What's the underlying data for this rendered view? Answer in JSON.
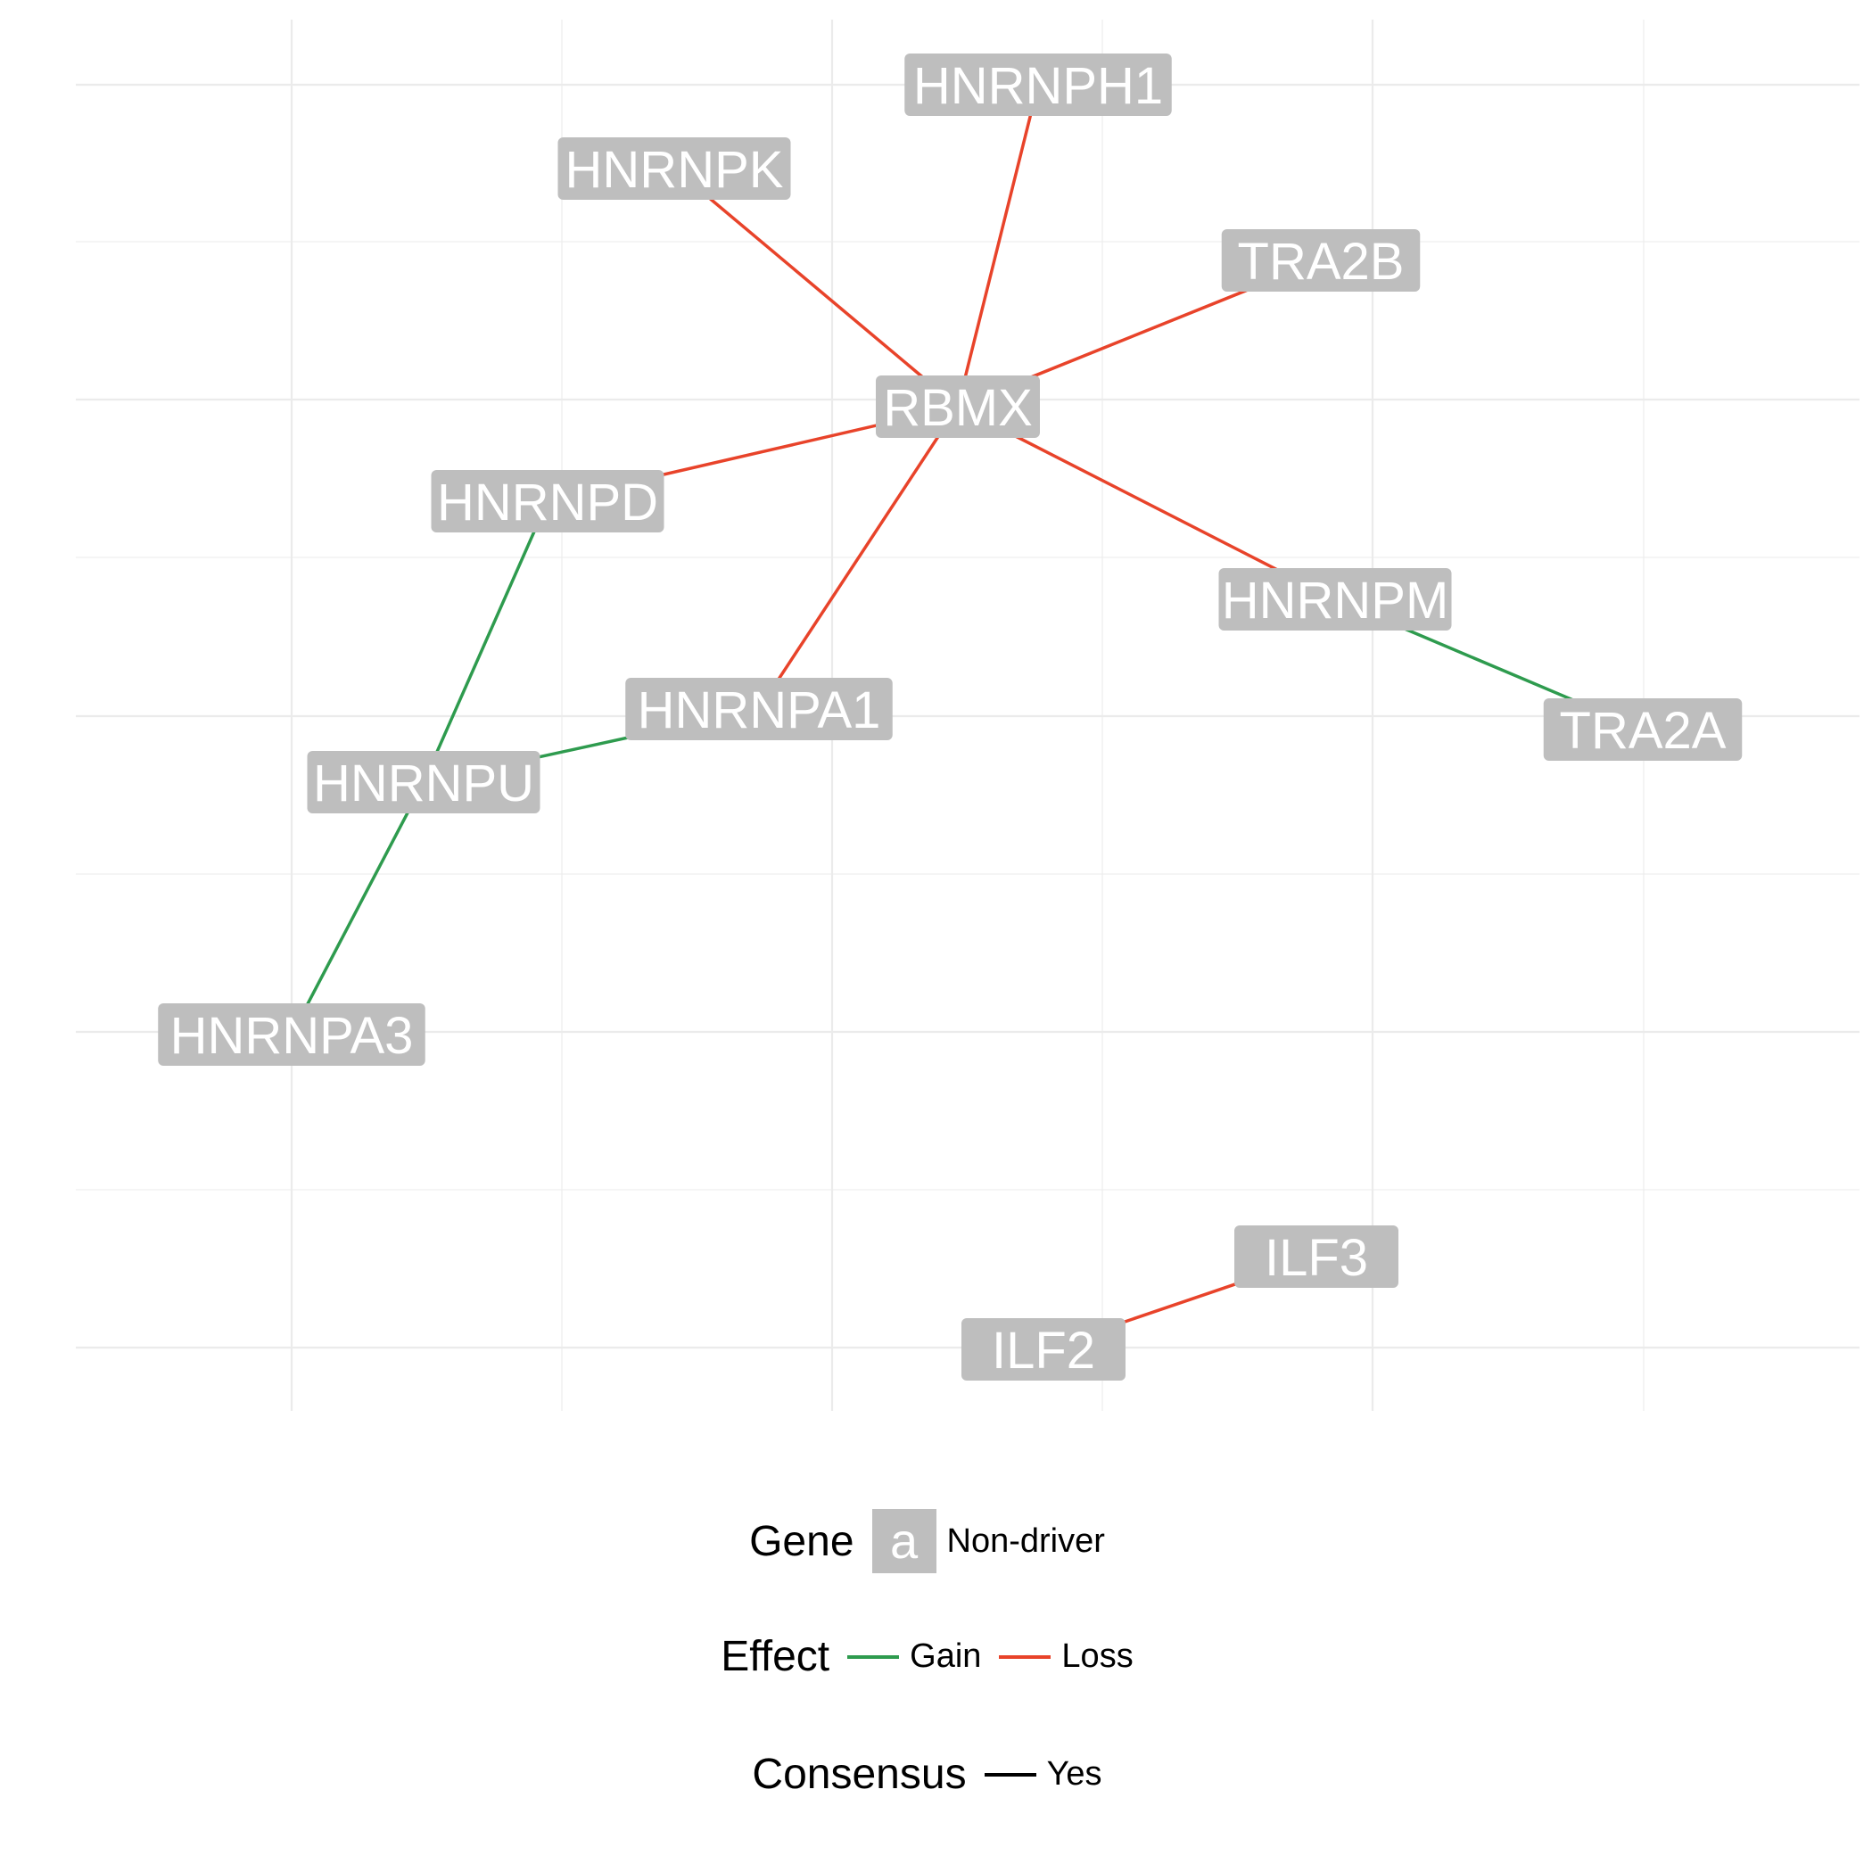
{
  "colors": {
    "gain": "#2e9b4e",
    "loss": "#e8432a",
    "consensus_yes": "#000000",
    "node_fill": "#bebebe",
    "node_text": "#ffffff",
    "grid": "#ebebeb"
  },
  "nodes": [
    {
      "id": "HNRNPH1",
      "label": "HNRNPH1"
    },
    {
      "id": "HNRNPK",
      "label": "HNRNPK"
    },
    {
      "id": "TRA2B",
      "label": "TRA2B"
    },
    {
      "id": "RBMX",
      "label": "RBMX"
    },
    {
      "id": "HNRNPD",
      "label": "HNRNPD"
    },
    {
      "id": "HNRNPM",
      "label": "HNRNPM"
    },
    {
      "id": "HNRNPA1",
      "label": "HNRNPA1"
    },
    {
      "id": "TRA2A",
      "label": "TRA2A"
    },
    {
      "id": "HNRNPU",
      "label": "HNRNPU"
    },
    {
      "id": "HNRNPA3",
      "label": "HNRNPA3"
    },
    {
      "id": "ILF3",
      "label": "ILF3"
    },
    {
      "id": "ILF2",
      "label": "ILF2"
    }
  ],
  "edges": [
    {
      "source": "RBMX",
      "target": "HNRNPH1",
      "effect": "Loss"
    },
    {
      "source": "RBMX",
      "target": "HNRNPK",
      "effect": "Loss"
    },
    {
      "source": "RBMX",
      "target": "TRA2B",
      "effect": "Loss"
    },
    {
      "source": "RBMX",
      "target": "HNRNPD",
      "effect": "Loss"
    },
    {
      "source": "RBMX",
      "target": "HNRNPM",
      "effect": "Loss"
    },
    {
      "source": "RBMX",
      "target": "HNRNPA1",
      "effect": "Loss"
    },
    {
      "source": "HNRNPM",
      "target": "TRA2A",
      "effect": "Gain"
    },
    {
      "source": "HNRNPD",
      "target": "HNRNPU",
      "effect": "Gain"
    },
    {
      "source": "HNRNPU",
      "target": "HNRNPA1",
      "effect": "Gain"
    },
    {
      "source": "HNRNPU",
      "target": "HNRNPA3",
      "effect": "Gain"
    },
    {
      "source": "ILF2",
      "target": "ILF3",
      "effect": "Loss"
    }
  ],
  "legend": {
    "gene": {
      "title": "Gene",
      "key_glyph": "a",
      "label": "Non-driver"
    },
    "effect": {
      "title": "Effect",
      "items": [
        {
          "label": "Gain"
        },
        {
          "label": "Loss"
        }
      ]
    },
    "consensus": {
      "title": "Consensus",
      "items": [
        {
          "label": "Yes"
        }
      ]
    }
  }
}
